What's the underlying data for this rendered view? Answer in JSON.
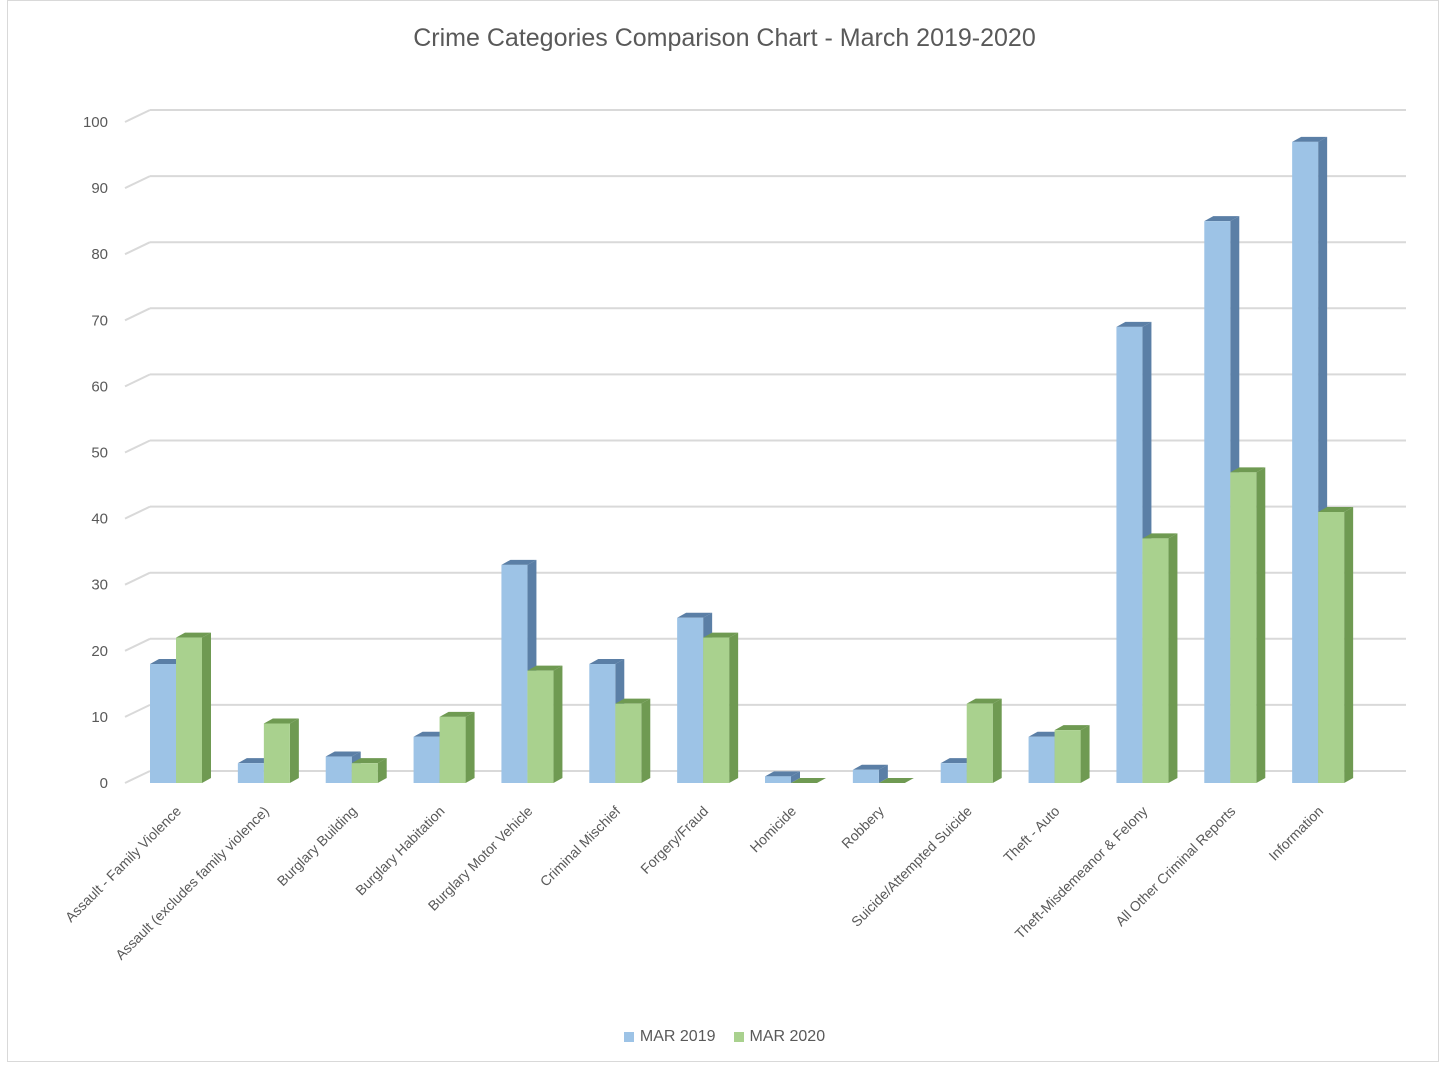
{
  "chart_data": {
    "type": "bar",
    "title": "Crime Categories Comparison Chart - March 2019-2020",
    "xlabel": "",
    "ylabel": "",
    "ylim": [
      0,
      100
    ],
    "yticks": [
      0,
      10,
      20,
      30,
      40,
      50,
      60,
      70,
      80,
      90,
      100
    ],
    "grid": true,
    "legend_position": "bottom",
    "style": "3d-clustered-column",
    "categories": [
      "Assault - Family Violence",
      "Assault (excludes family violence)",
      "Burglary Building",
      "Burglary Habitation",
      "Burglary Motor Vehicle",
      "Criminal Mischief",
      "Forgery/Fraud",
      "Homicide",
      "Robbery",
      "Suicide/Attempted Suicide",
      "Theft - Auto",
      "Theft-Misdemeanor &  Felony",
      "All Other Criminal Reports",
      "Information"
    ],
    "series": [
      {
        "name": "MAR 2019",
        "color": "#9dc3e6",
        "side_color": "#5b7fa6",
        "values": [
          18,
          3,
          4,
          7,
          33,
          18,
          25,
          1,
          2,
          3,
          7,
          69,
          85,
          97
        ]
      },
      {
        "name": "MAR 2020",
        "color": "#a9d18e",
        "side_color": "#6f9a52",
        "values": [
          22,
          9,
          3,
          10,
          17,
          12,
          22,
          0,
          0,
          12,
          8,
          37,
          47,
          41
        ]
      }
    ]
  }
}
